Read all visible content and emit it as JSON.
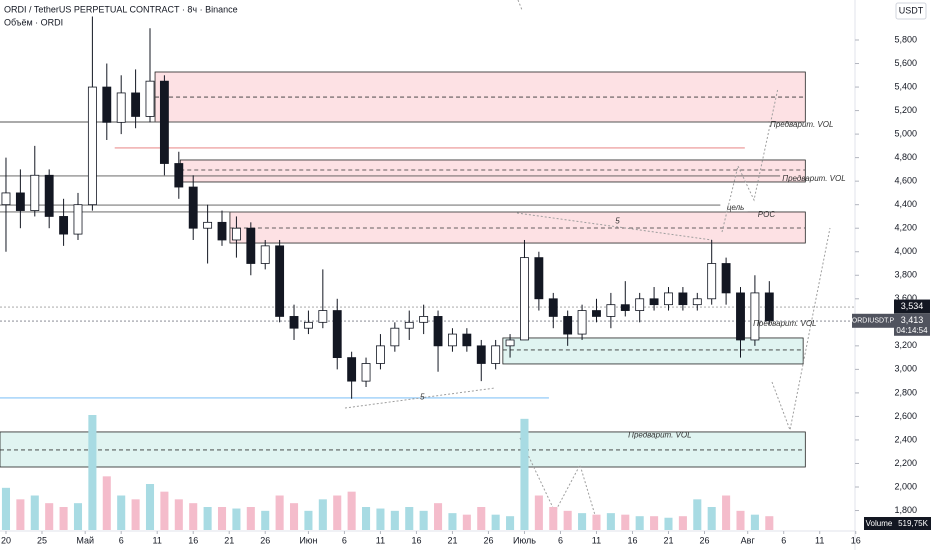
{
  "chart_data": {
    "type": "candlestick",
    "title": "ORDI / TetherUS PERPETUAL CONTRACT · 8ч · Binance",
    "subtitle": "Объём · ORDI",
    "currency": "USDT",
    "symbol": "ORDIUSDT.P",
    "countdown": "04:14:54",
    "last_price": {
      "value": 3413,
      "label": "3,413"
    },
    "marker_price": {
      "value": 3534,
      "label": "3,534"
    },
    "volume_name": "Volume",
    "volume_last": {
      "value": 519750,
      "label": "519,75K"
    },
    "up_color": "#ffffff",
    "down_color": "#131722",
    "volume_up_color": "#a8dbe3",
    "volume_down_color": "#f4bccb",
    "ylim": [
      1670,
      5930
    ],
    "xlim": [
      -0.83,
      117.9
    ],
    "yticks": [
      {
        "value": 1800,
        "label": "1,800"
      },
      {
        "value": 2000,
        "label": "2,000"
      },
      {
        "value": 2200,
        "label": "2,200"
      },
      {
        "value": 2400,
        "label": "2,400"
      },
      {
        "value": 2600,
        "label": "2,600"
      },
      {
        "value": 2800,
        "label": "2,800"
      },
      {
        "value": 3000,
        "label": "3,000"
      },
      {
        "value": 3200,
        "label": "3,200"
      },
      {
        "value": 3400,
        "label": "3,400"
      },
      {
        "value": 3600,
        "label": "3,600"
      },
      {
        "value": 3800,
        "label": "3,800"
      },
      {
        "value": 4000,
        "label": "4,000"
      },
      {
        "value": 4200,
        "label": "4,200"
      },
      {
        "value": 4400,
        "label": "4,400"
      },
      {
        "value": 4600,
        "label": "4,600"
      },
      {
        "value": 4800,
        "label": "4,800"
      },
      {
        "value": 5000,
        "label": "5,000"
      },
      {
        "value": 5200,
        "label": "5,200"
      },
      {
        "value": 5400,
        "label": "5,400"
      },
      {
        "value": 5600,
        "label": "5,600"
      },
      {
        "value": 5800,
        "label": "5,800"
      }
    ],
    "xticks": [
      {
        "value": 0,
        "label": "20"
      },
      {
        "value": 5,
        "label": "25"
      },
      {
        "value": 11,
        "label": "Май"
      },
      {
        "value": 16,
        "label": "6"
      },
      {
        "value": 21,
        "label": "11"
      },
      {
        "value": 26,
        "label": "16"
      },
      {
        "value": 31,
        "label": "21"
      },
      {
        "value": 36,
        "label": "26"
      },
      {
        "value": 42,
        "label": "Июн"
      },
      {
        "value": 47,
        "label": "6"
      },
      {
        "value": 52,
        "label": "11"
      },
      {
        "value": 57,
        "label": "16"
      },
      {
        "value": 62,
        "label": "21"
      },
      {
        "value": 67,
        "label": "26"
      },
      {
        "value": 72,
        "label": "Июль"
      },
      {
        "value": 77,
        "label": "6"
      },
      {
        "value": 82,
        "label": "11"
      },
      {
        "value": 87,
        "label": "16"
      },
      {
        "value": 92,
        "label": "21"
      },
      {
        "value": 97,
        "label": "26"
      },
      {
        "value": 103,
        "label": "Авг"
      },
      {
        "value": 108,
        "label": "6"
      },
      {
        "value": 113,
        "label": "11"
      },
      {
        "value": 118,
        "label": "16"
      }
    ],
    "x": [
      0,
      2,
      4,
      6,
      8,
      10,
      12,
      14,
      16,
      18,
      20,
      22,
      24,
      26,
      28,
      30,
      32,
      34,
      36,
      38,
      40,
      42,
      44,
      46,
      48,
      50,
      52,
      54,
      56,
      58,
      60,
      62,
      64,
      66,
      68,
      70,
      72,
      74,
      76,
      78,
      80,
      82,
      84,
      86,
      88,
      90,
      92,
      94,
      96,
      98,
      100,
      102,
      104,
      106
    ],
    "open": [
      4400,
      4500,
      4350,
      4650,
      4300,
      4150,
      4400,
      5400,
      5100,
      5350,
      5150,
      5450,
      4750,
      4550,
      4200,
      4250,
      4100,
      4200,
      3900,
      4050,
      3450,
      3350,
      3400,
      3500,
      3100,
      2900,
      3050,
      3200,
      3350,
      3400,
      3450,
      3200,
      3300,
      3200,
      3050,
      3200,
      3250,
      3950,
      3600,
      3450,
      3300,
      3500,
      3450,
      3550,
      3500,
      3600,
      3550,
      3650,
      3550,
      3600,
      3900,
      3650,
      3250,
      3650
    ],
    "high": [
      4800,
      4700,
      4900,
      4700,
      4450,
      4500,
      6000,
      5600,
      5500,
      5550,
      5900,
      5500,
      4850,
      4650,
      4400,
      4350,
      4300,
      4250,
      4100,
      4100,
      3550,
      3500,
      3850,
      3600,
      3150,
      3100,
      3300,
      3400,
      3500,
      3550,
      3500,
      3350,
      3350,
      3250,
      3250,
      3300,
      4100,
      4000,
      3650,
      3500,
      3550,
      3600,
      3650,
      3750,
      3650,
      3700,
      3700,
      3700,
      3650,
      4100,
      3950,
      3700,
      3800,
      3750
    ],
    "low": [
      4000,
      4200,
      4300,
      4200,
      4050,
      4100,
      4350,
      4950,
      5000,
      5050,
      5100,
      4650,
      4450,
      4100,
      3900,
      4050,
      3950,
      3800,
      3850,
      3400,
      3250,
      3300,
      3350,
      3000,
      2750,
      2850,
      3000,
      3150,
      3250,
      3300,
      2980,
      3150,
      3150,
      2900,
      3000,
      3100,
      3250,
      3500,
      3350,
      3200,
      3250,
      3400,
      3350,
      3450,
      3400,
      3500,
      3500,
      3500,
      3500,
      3550,
      3550,
      3100,
      3200,
      3380
    ],
    "close": [
      4500,
      4350,
      4650,
      4300,
      4150,
      4400,
      5400,
      5100,
      5350,
      5150,
      5450,
      4750,
      4550,
      4200,
      4250,
      4100,
      4200,
      3900,
      4050,
      3450,
      3350,
      3400,
      3500,
      3100,
      2900,
      3050,
      3200,
      3350,
      3400,
      3450,
      3200,
      3300,
      3200,
      3050,
      3200,
      3250,
      3950,
      3600,
      3450,
      3300,
      3500,
      3450,
      3550,
      3500,
      3600,
      3550,
      3650,
      3550,
      3600,
      3900,
      3650,
      3250,
      3650,
      3413
    ],
    "volume": [
      55,
      40,
      45,
      35,
      30,
      35,
      150,
      70,
      45,
      40,
      60,
      50,
      40,
      35,
      30,
      30,
      28,
      30,
      25,
      45,
      35,
      25,
      40,
      45,
      50,
      30,
      28,
      25,
      30,
      25,
      35,
      22,
      20,
      30,
      20,
      18,
      145,
      45,
      30,
      25,
      22,
      20,
      22,
      20,
      18,
      18,
      16,
      18,
      40,
      30,
      45,
      25,
      20,
      18
    ],
    "zones": [
      {
        "low": 5103,
        "high": 5528,
        "mid": 5315,
        "x0": 20.7,
        "x1": 111,
        "color": "#fde1e4"
      },
      {
        "low": 4593,
        "high": 4780,
        "mid": 4695,
        "x0": 24.2,
        "x1": 111,
        "color": "#fde1e4"
      },
      {
        "low": 4074,
        "high": 4338,
        "mid": 4202,
        "x0": 31.1,
        "x1": 111,
        "color": "#fde1e4"
      },
      {
        "low": 3046,
        "high": 3267,
        "mid": 3165,
        "x0": 69,
        "x1": 110.7,
        "color": "#e0f4f1"
      },
      {
        "low": 2170,
        "high": 2468,
        "mid": 2315,
        "x0": -0.83,
        "x1": 111,
        "color": "#e0f4f1"
      }
    ],
    "levels": [
      {
        "value": 5103,
        "x0": -0.83,
        "x1": 105.8,
        "color": "#555555"
      },
      {
        "value": 4644,
        "x0": -0.83,
        "x1": 107.5,
        "color": "#555555"
      },
      {
        "value": 4397,
        "x0": -0.83,
        "x1": 99.2,
        "color": "#555555"
      },
      {
        "value": 4338,
        "x0": -0.83,
        "x1": 103,
        "color": "#555555"
      },
      {
        "value": 4882,
        "x0": 15.1,
        "x1": 102.6,
        "color": "#e57373"
      },
      {
        "value": 2757,
        "x0": -0.83,
        "x1": 75.4,
        "color": "#64b5f6"
      },
      {
        "value": 3530,
        "x0": -0.83,
        "x1": 117.9,
        "color": "#9e9e9e"
      },
      {
        "value": 3411,
        "x0": -0.83,
        "x1": 117.9,
        "color": "#787b86"
      }
    ],
    "annotations": [
      {
        "text": "Предварит. VOL",
        "x": 106.1,
        "y": 5103
      },
      {
        "text": "Предварит. VOL",
        "x": 107.8,
        "y": 4644
      },
      {
        "text": "Предварит. VOL",
        "x": 103.75,
        "y": 3411
      },
      {
        "text": "Предварит. VOL",
        "x": 86.4,
        "y": 2464
      },
      {
        "text": "цель",
        "x": 100.1,
        "y": 4397
      },
      {
        "text": "POC",
        "x": 104.4,
        "y": 4338
      },
      {
        "text": "5",
        "x": 84.6,
        "y": 4285
      },
      {
        "text": "5",
        "x": 57.5,
        "y": 2787
      }
    ]
  }
}
